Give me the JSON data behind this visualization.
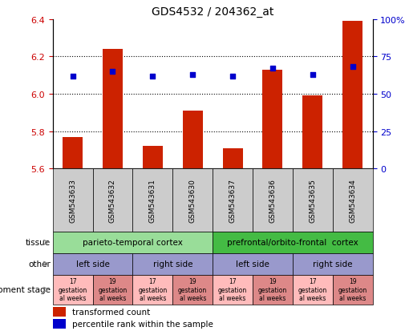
{
  "title": "GDS4532 / 204362_at",
  "samples": [
    "GSM543633",
    "GSM543632",
    "GSM543631",
    "GSM543630",
    "GSM543637",
    "GSM543636",
    "GSM543635",
    "GSM543634"
  ],
  "bar_values": [
    5.77,
    6.24,
    5.72,
    5.91,
    5.71,
    6.13,
    5.99,
    6.39
  ],
  "scatter_percentiles": [
    62,
    65,
    62,
    63,
    62,
    67,
    63,
    68
  ],
  "ylim_left": [
    5.6,
    6.4
  ],
  "ylim_right": [
    0,
    100
  ],
  "yticks_left": [
    5.6,
    5.8,
    6.0,
    6.2,
    6.4
  ],
  "yticks_right": [
    0,
    25,
    50,
    75,
    100
  ],
  "bar_color": "#cc2200",
  "scatter_color": "#0000cc",
  "bar_bottom": 5.6,
  "tissue_data": [
    {
      "text": "parieto-temporal cortex",
      "start": 0,
      "end": 3,
      "color": "#99dd99"
    },
    {
      "text": "prefrontal/orbito-frontal  cortex",
      "start": 4,
      "end": 7,
      "color": "#44bb44"
    }
  ],
  "other_data": [
    {
      "text": "left side",
      "start": 0,
      "end": 1
    },
    {
      "text": "right side",
      "start": 2,
      "end": 3
    },
    {
      "text": "left side",
      "start": 4,
      "end": 5
    },
    {
      "text": "right side",
      "start": 6,
      "end": 7
    }
  ],
  "other_color": "#9999cc",
  "dev_color_17": "#ffbbbb",
  "dev_color_19": "#dd8888",
  "legend_bar_label": "transformed count",
  "legend_scatter_label": "percentile rank within the sample",
  "row_labels": [
    "tissue",
    "other",
    "development stage"
  ],
  "bar_tick_color": "#cc0000",
  "scatter_tick_color": "#0000cc",
  "xticklabel_bg": "#cccccc",
  "grid_values": [
    5.8,
    6.0,
    6.2
  ]
}
